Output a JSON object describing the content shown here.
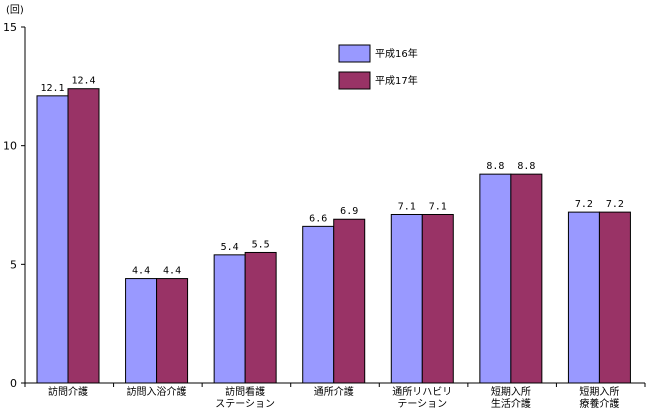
{
  "chart_data": {
    "type": "bar",
    "unit_label": "(回)",
    "categories": [
      [
        "訪問介護"
      ],
      [
        "訪問入浴介護"
      ],
      [
        "訪問看護",
        "ステーション"
      ],
      [
        "通所介護"
      ],
      [
        "通所リハビリ",
        "テーション"
      ],
      [
        "短期入所",
        "生活介護"
      ],
      [
        "短期入所",
        "療養介護"
      ]
    ],
    "series": [
      {
        "name": "平成16年",
        "color": "#9999ff",
        "values": [
          12.1,
          4.4,
          5.4,
          6.6,
          7.1,
          8.8,
          7.2
        ],
        "labels": [
          "12.1",
          "4.4",
          "5.4",
          "6.6",
          "7.1",
          "8.8",
          "7.2"
        ]
      },
      {
        "name": "平成17年",
        "color": "#993366",
        "values": [
          12.4,
          4.4,
          5.5,
          6.9,
          7.1,
          8.8,
          7.2
        ],
        "labels": [
          "12.4",
          "4.4",
          "5.5",
          "6.9",
          "7.1",
          "8.8",
          "7.2"
        ]
      }
    ],
    "ylim": [
      0,
      15
    ],
    "yticks": [
      0,
      5,
      10,
      15
    ],
    "legend_position": "top-center",
    "grid": false
  }
}
